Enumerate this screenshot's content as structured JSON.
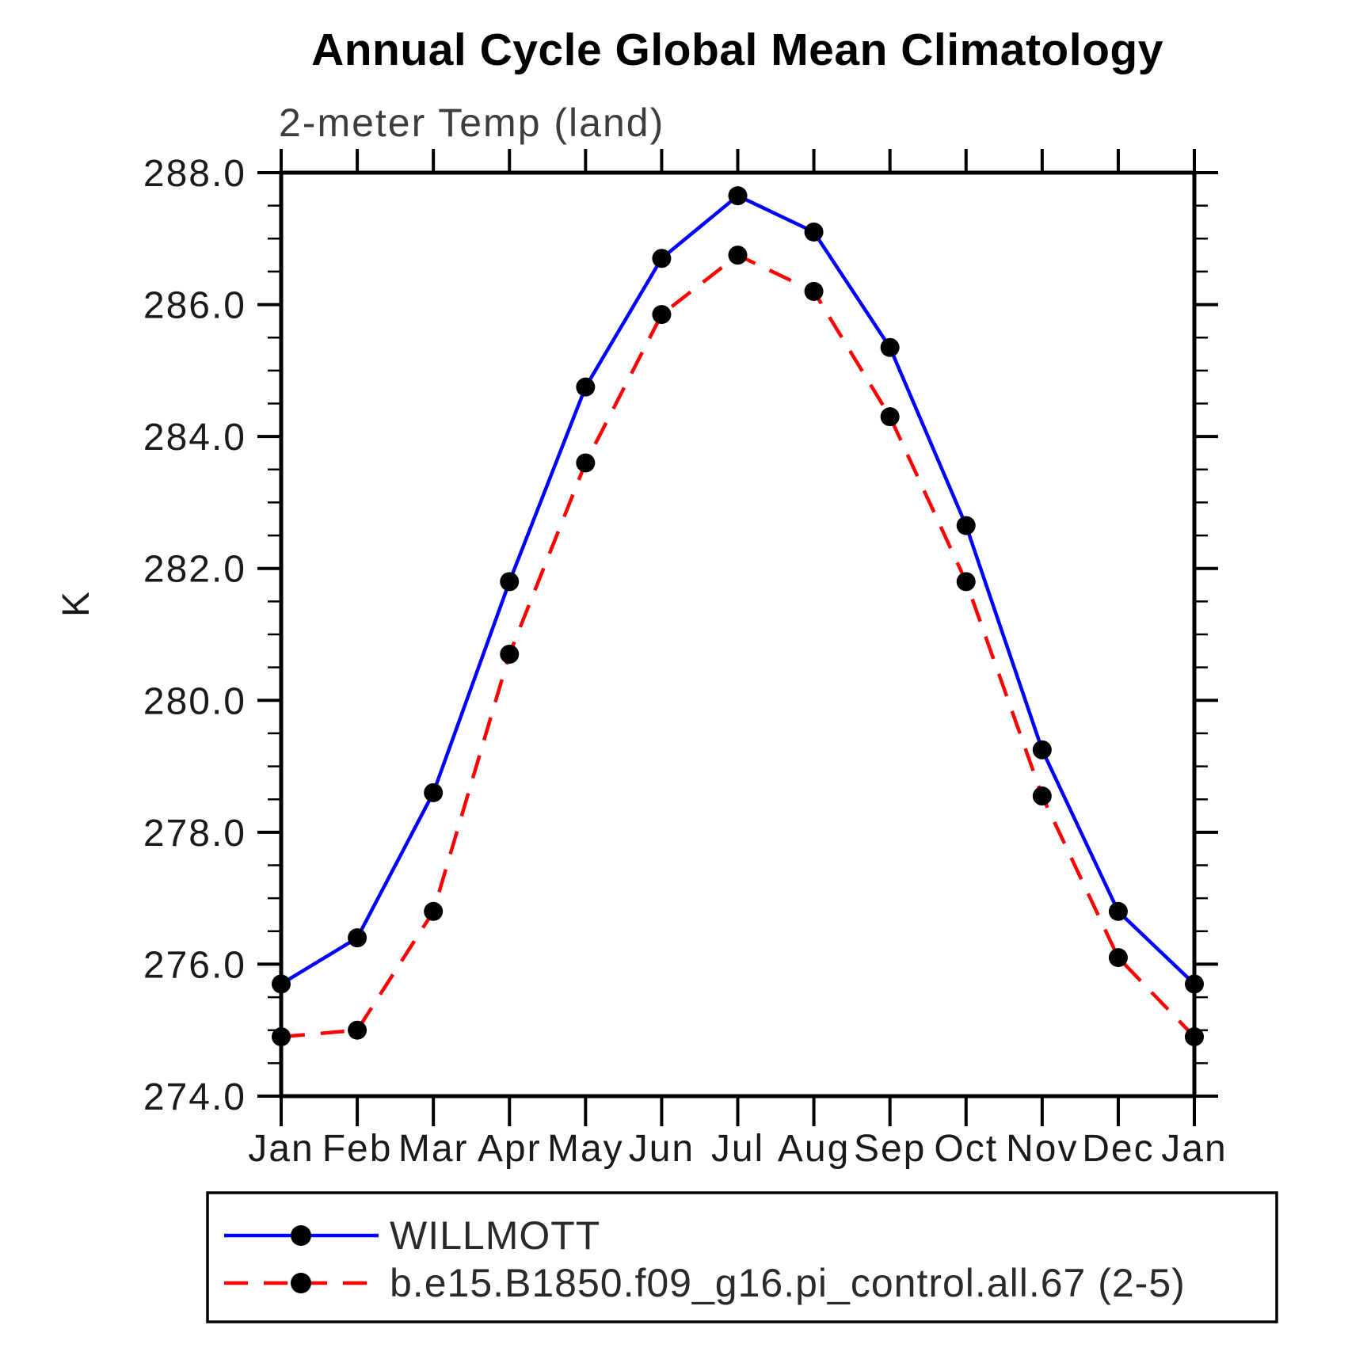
{
  "chart_data": {
    "type": "line",
    "title": "Annual Cycle Global Mean Climatology",
    "subtitle": "2-meter Temp (land)",
    "xlabel": "",
    "ylabel": "K",
    "categories": [
      "Jan",
      "Feb",
      "Mar",
      "Apr",
      "May",
      "Jun",
      "Jul",
      "Aug",
      "Sep",
      "Oct",
      "Nov",
      "Dec",
      "Jan"
    ],
    "ylim": [
      274.0,
      288.0
    ],
    "ytick_major_interval": 2.0,
    "ytick_minor_interval": 0.5,
    "ytick_labels": [
      "288.0",
      "286.0",
      "284.0",
      "282.0",
      "280.0",
      "278.0",
      "276.0",
      "274.0"
    ],
    "grid": false,
    "legend_position": "bottom",
    "marker_color": "#000000",
    "axis_color": "#000000",
    "series": [
      {
        "name": "WILLMOTT",
        "color": "#0000ff",
        "style": "solid",
        "marker": "circle",
        "values": [
          275.7,
          276.4,
          278.6,
          281.8,
          284.75,
          286.7,
          287.65,
          287.1,
          285.35,
          282.65,
          279.25,
          276.8,
          275.7
        ]
      },
      {
        "name": "b.e15.B1850.f09_g16.pi_control.all.67 (2-5)",
        "color": "#ff0000",
        "style": "dashed",
        "marker": "circle",
        "values": [
          274.9,
          275.0,
          276.8,
          280.7,
          283.6,
          285.85,
          286.75,
          286.2,
          284.3,
          281.8,
          278.55,
          276.1,
          274.9
        ]
      }
    ]
  }
}
